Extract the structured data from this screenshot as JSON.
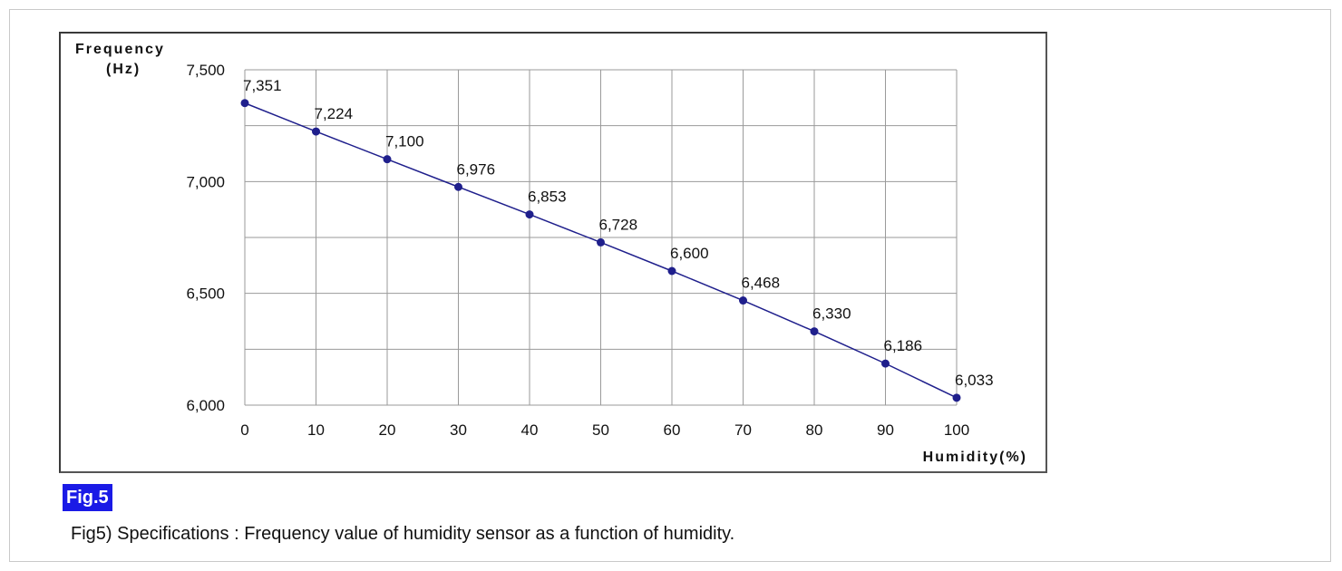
{
  "figure": {
    "badge": "Fig.5",
    "caption": "Fig5) Specifications : Frequency value of humidity sensor as a function of humidity."
  },
  "colors": {
    "series": "#1f1f8c",
    "grid": "#9a9a9a",
    "badge_bg": "#1a1ae6"
  },
  "chart_data": {
    "type": "line",
    "ylabel_line1": "Frequency",
    "ylabel_line2": "(Hz)",
    "xlabel": "Humidity(%)",
    "x": [
      0,
      10,
      20,
      30,
      40,
      50,
      60,
      70,
      80,
      90,
      100
    ],
    "series": [
      {
        "values": [
          7351,
          7224,
          7100,
          6976,
          6853,
          6728,
          6600,
          6468,
          6330,
          6186,
          6033
        ]
      }
    ],
    "data_labels": [
      "7,351",
      "7,224",
      "7,100",
      "6,976",
      "6,853",
      "6,728",
      "6,600",
      "6,468",
      "6,330",
      "6,186",
      "6,033"
    ],
    "xlim": [
      0,
      100
    ],
    "ylim": [
      6000,
      7500
    ],
    "x_ticks": [
      "0",
      "10",
      "20",
      "30",
      "40",
      "50",
      "60",
      "70",
      "80",
      "90",
      "100"
    ],
    "y_ticks": [
      {
        "value": 7500,
        "label": "7,500"
      },
      {
        "value": 7000,
        "label": "7,000"
      },
      {
        "value": 6500,
        "label": "6,500"
      },
      {
        "value": 6000,
        "label": "6,000"
      }
    ],
    "y_gridlines_every": 250,
    "grid": true,
    "legend": "none"
  }
}
